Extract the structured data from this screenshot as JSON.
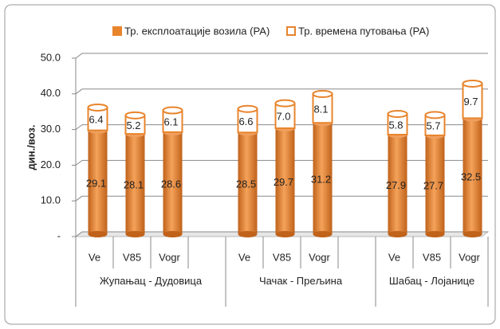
{
  "chart_data": {
    "type": "bar3d",
    "stacked": true,
    "ylabel": "дин./воз.",
    "categories": [
      "Ve",
      "V85",
      "Vogr",
      null,
      "Ve",
      "V85",
      "Vogr",
      null,
      "Ve",
      "V85",
      "Vogr"
    ],
    "groups": [
      "Жупањац - Дудовица",
      "Чачак - Прељина",
      "Шабац - Лојанице"
    ],
    "series": [
      {
        "name": "Тр. експлоатације возила (РА)",
        "color": "#e8842c",
        "values": [
          29.1,
          28.1,
          28.6,
          null,
          28.5,
          29.7,
          31.2,
          null,
          27.9,
          27.7,
          32.5
        ]
      },
      {
        "name": "Тр. времена путовања (РА)",
        "color": "#ffffff",
        "edge": "#e8842c",
        "values": [
          6.4,
          5.2,
          6.1,
          null,
          6.6,
          7.0,
          8.1,
          null,
          5.8,
          5.7,
          9.7
        ],
        "value_labels": [
          "6.4",
          "5.2",
          "6.1",
          null,
          "6.6",
          "7.0",
          "8.1",
          null,
          "5.8",
          "5.7",
          "9.7"
        ]
      }
    ],
    "ylim": [
      0,
      50
    ],
    "yticks": [
      {
        "value": 0,
        "label": "-"
      },
      {
        "value": 10,
        "label": "10.0"
      },
      {
        "value": 20,
        "label": "20.0"
      },
      {
        "value": 30,
        "label": "30.0"
      },
      {
        "value": 40,
        "label": "40.0"
      },
      {
        "value": 50,
        "label": "50.0"
      }
    ],
    "grid": true
  }
}
